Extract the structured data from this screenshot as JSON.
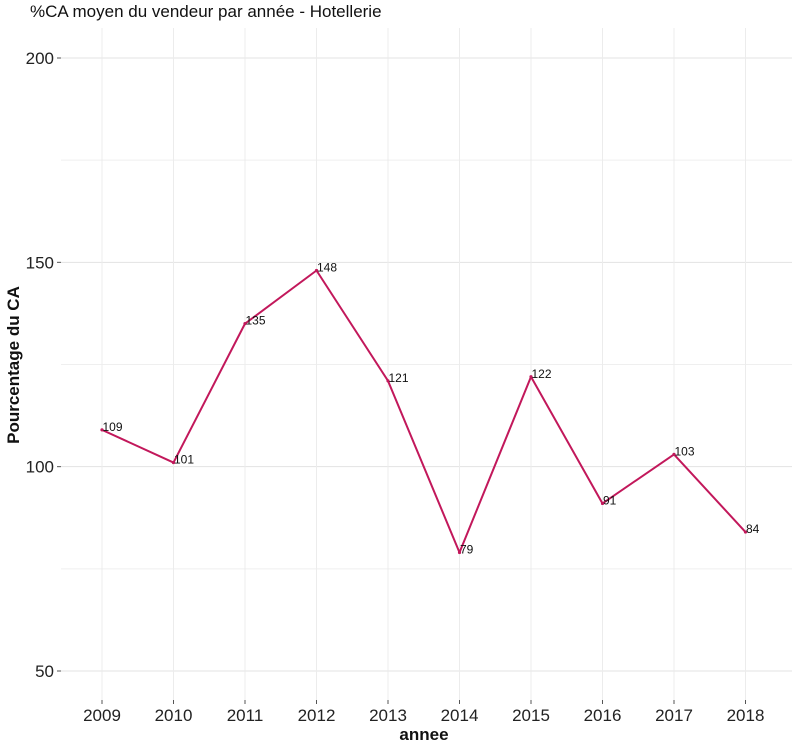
{
  "chart_data": {
    "type": "line",
    "title": "%CA moyen du vendeur par année - Hotellerie",
    "xlabel": "annee",
    "ylabel": "Pourcentage du CA",
    "x": [
      "2009",
      "2010",
      "2011",
      "2012",
      "2013",
      "2014",
      "2015",
      "2016",
      "2017",
      "2018"
    ],
    "series": [
      {
        "values": [
          109,
          101,
          135,
          148,
          121,
          79,
          122,
          91,
          103,
          84
        ],
        "labels": [
          "109",
          "101",
          "135",
          "148",
          "121",
          "79",
          "122",
          "91",
          "103",
          "84"
        ],
        "color": "#c2185b"
      }
    ],
    "ylim": [
      50,
      200
    ],
    "yticks": [
      "50",
      "100",
      "150",
      "200"
    ],
    "grid": true,
    "legend": "none"
  }
}
